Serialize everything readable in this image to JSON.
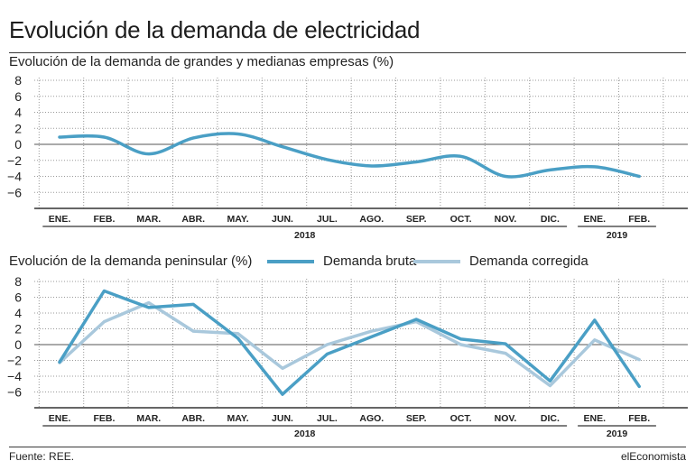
{
  "title": "Evolución de la demanda de electricidad",
  "source": "Fuente: REE.",
  "brand": "elEconomista",
  "colors": {
    "bruta": "#4a9fc5",
    "corregida": "#a9c8dc",
    "grid": "#9a9a9a",
    "axis": "#333333"
  },
  "chart_data": [
    {
      "type": "line",
      "title": "Evolución de la demanda de grandes y medianas empresas (%)",
      "categories": [
        "ENE.",
        "FEB.",
        "MAR.",
        "ABR.",
        "MAY.",
        "JUN.",
        "JUL.",
        "AGO.",
        "SEP.",
        "OCT.",
        "NOV.",
        "DIC.",
        "ENE.",
        "FEB."
      ],
      "years": [
        {
          "label": "2018",
          "from": 0,
          "to": 11
        },
        {
          "label": "2019",
          "from": 12,
          "to": 13
        }
      ],
      "y_ticks": [
        8,
        6,
        4,
        2,
        0,
        -2,
        -4,
        -6
      ],
      "ylim": [
        -8,
        8
      ],
      "grid": true,
      "smooth": true,
      "series": [
        {
          "values": [
            0.9,
            0.9,
            -1.2,
            0.8,
            1.3,
            -0.3,
            -1.9,
            -2.7,
            -2.2,
            -1.5,
            -4.0,
            -3.2,
            -2.8,
            -4.0
          ]
        }
      ]
    },
    {
      "type": "line",
      "title": "Evolución de la demanda peninsular (%)",
      "categories": [
        "ENE.",
        "FEB.",
        "MAR.",
        "ABR.",
        "MAY.",
        "JUN.",
        "JUL.",
        "AGO.",
        "SEP.",
        "OCT.",
        "NOV.",
        "DIC.",
        "ENE.",
        "FEB."
      ],
      "years": [
        {
          "label": "2018",
          "from": 0,
          "to": 11
        },
        {
          "label": "2019",
          "from": 12,
          "to": 13
        }
      ],
      "y_ticks": [
        8,
        6,
        4,
        2,
        0,
        -2,
        -4,
        -6
      ],
      "ylim": [
        -8,
        8
      ],
      "grid": true,
      "legend": "top",
      "series": [
        {
          "name": "Demanda bruta",
          "values": [
            -2.2,
            6.8,
            4.7,
            5.1,
            0.8,
            -6.3,
            -1.2,
            1.0,
            3.2,
            0.7,
            0.1,
            -4.6,
            3.1,
            -5.3
          ]
        },
        {
          "name": "Demanda corregida",
          "values": [
            -2.3,
            2.9,
            5.3,
            1.7,
            1.4,
            -3.0,
            0.0,
            1.7,
            2.9,
            0.0,
            -1.1,
            -5.2,
            0.6,
            -1.9
          ]
        }
      ]
    }
  ]
}
